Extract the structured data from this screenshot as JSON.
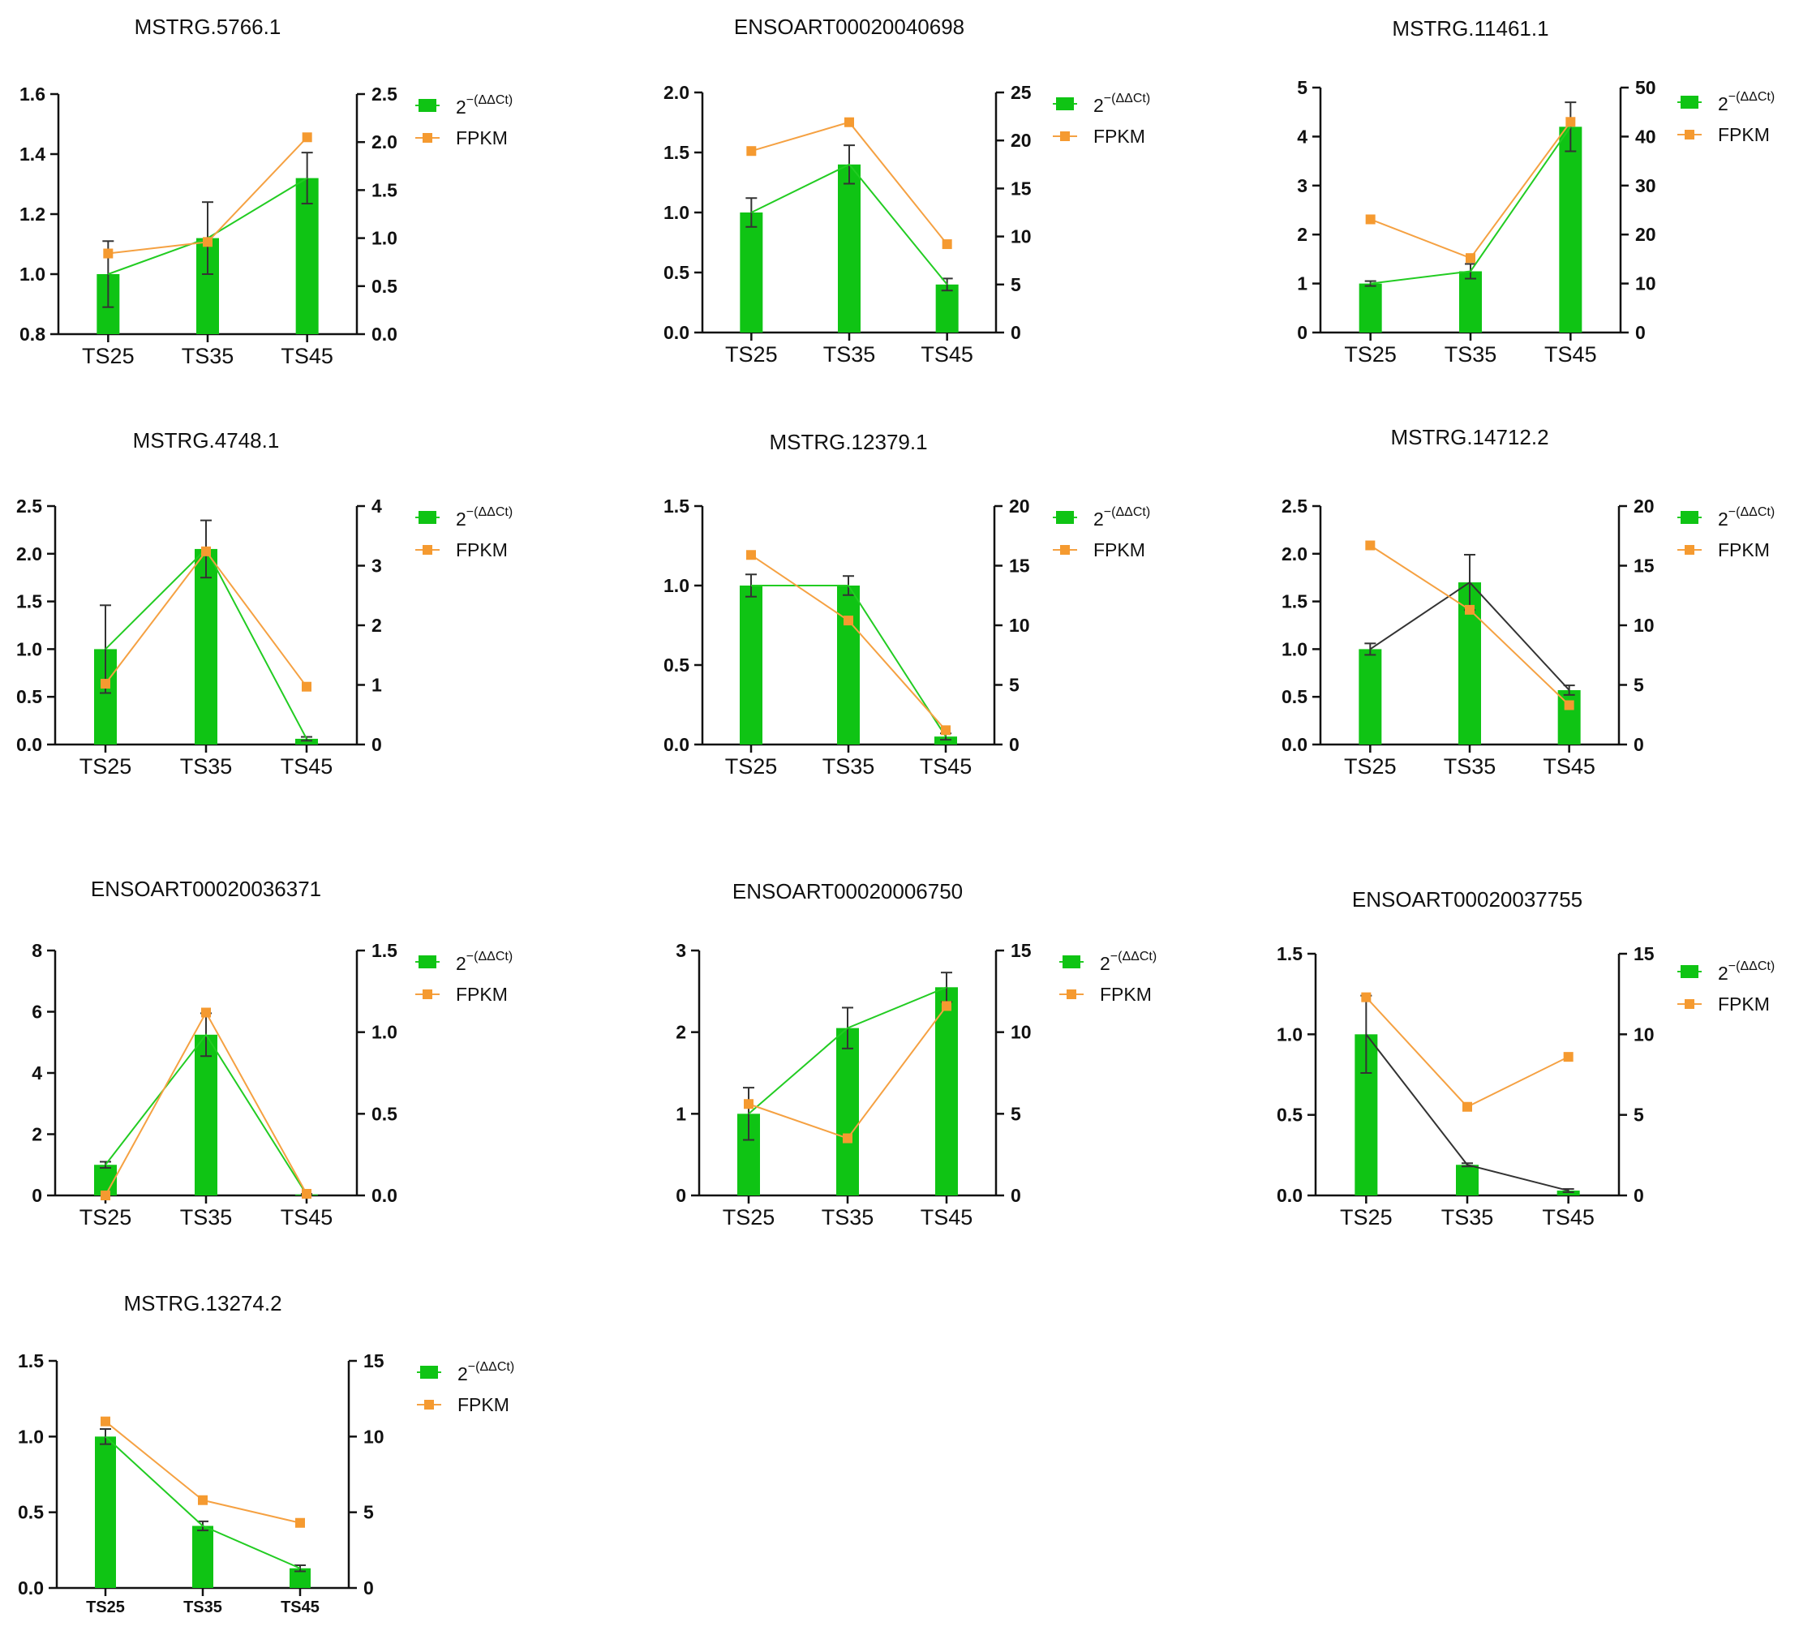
{
  "chart_data": [
    {
      "type": "bar",
      "title": "MSTRG.5766.1",
      "categories": [
        "TS25",
        "TS35",
        "TS45"
      ],
      "left_axis": {
        "min": 0.8,
        "max": 1.6,
        "ticks": [
          "0.8",
          "1.0",
          "1.2",
          "1.4",
          "1.6"
        ]
      },
      "right_axis": {
        "min": 0,
        "max": 2.5,
        "ticks": [
          "0.0",
          "0.5",
          "1.0",
          "1.5",
          "2.0",
          "2.5"
        ]
      },
      "series": [
        {
          "name": "2^-(ΔΔCt)",
          "kind": "bar+line",
          "axis": "left",
          "values": [
            1.0,
            1.12,
            1.32
          ],
          "errors": [
            0.11,
            0.12,
            0.085
          ],
          "line_color": "#22cc22"
        },
        {
          "name": "FPKM",
          "kind": "line",
          "axis": "right",
          "values": [
            0.84,
            0.96,
            2.05
          ],
          "line_color": "#f5a142"
        }
      ],
      "legend": {
        "qpcr_base": "2",
        "qpcr_exponent": "−(ΔΔCt)",
        "fpkm": "FPKM"
      }
    },
    {
      "type": "bar",
      "title": "ENSOART00020040698",
      "categories": [
        "TS25",
        "TS35",
        "TS45"
      ],
      "left_axis": {
        "min": 0,
        "max": 2.0,
        "ticks": [
          "0.0",
          "0.5",
          "1.0",
          "1.5",
          "2.0"
        ]
      },
      "right_axis": {
        "min": 0,
        "max": 25,
        "ticks": [
          "0",
          "5",
          "10",
          "15",
          "20",
          "25"
        ]
      },
      "series": [
        {
          "name": "2^-(ΔΔCt)",
          "kind": "bar+line",
          "axis": "left",
          "values": [
            1.0,
            1.4,
            0.4
          ],
          "errors": [
            0.12,
            0.16,
            0.05
          ],
          "line_color": "#22cc22"
        },
        {
          "name": "FPKM",
          "kind": "line",
          "axis": "right",
          "values": [
            18.9,
            21.9,
            9.2
          ],
          "line_color": "#f5a142"
        }
      ],
      "legend": {
        "qpcr_base": "2",
        "qpcr_exponent": "−(ΔΔCt)",
        "fpkm": "FPKM"
      }
    },
    {
      "type": "bar",
      "title": "MSTRG.11461.1",
      "categories": [
        "TS25",
        "TS35",
        "TS45"
      ],
      "left_axis": {
        "min": 0,
        "max": 5,
        "ticks": [
          "0",
          "1",
          "2",
          "3",
          "4",
          "5"
        ]
      },
      "right_axis": {
        "min": 0,
        "max": 50,
        "ticks": [
          "0",
          "10",
          "20",
          "30",
          "40",
          "50"
        ]
      },
      "series": [
        {
          "name": "2^-(ΔΔCt)",
          "kind": "bar+line",
          "axis": "left",
          "values": [
            1.0,
            1.25,
            4.2
          ],
          "errors": [
            0.05,
            0.15,
            0.5
          ],
          "line_color": "#22cc22"
        },
        {
          "name": "FPKM",
          "kind": "line",
          "axis": "right",
          "values": [
            23.1,
            15.2,
            43.0
          ],
          "line_color": "#f5a142"
        }
      ],
      "legend": {
        "qpcr_base": "2",
        "qpcr_exponent": "−(ΔΔCt)",
        "fpkm": "FPKM"
      }
    },
    {
      "type": "bar",
      "title": "MSTRG.4748.1",
      "categories": [
        "TS25",
        "TS35",
        "TS45"
      ],
      "left_axis": {
        "min": 0,
        "max": 2.5,
        "ticks": [
          "0.0",
          "0.5",
          "1.0",
          "1.5",
          "2.0",
          "2.5"
        ]
      },
      "right_axis": {
        "min": 0,
        "max": 4,
        "ticks": [
          "0",
          "1",
          "2",
          "3",
          "4"
        ]
      },
      "series": [
        {
          "name": "2^-(ΔΔCt)",
          "kind": "bar+line",
          "axis": "left",
          "values": [
            1.0,
            2.05,
            0.06
          ],
          "errors": [
            0.46,
            0.3,
            0.02
          ],
          "line_color": "#22cc22"
        },
        {
          "name": "FPKM",
          "kind": "line",
          "axis": "right",
          "values": [
            1.02,
            3.24,
            0.97
          ],
          "line_color": "#f5a142"
        }
      ],
      "legend": {
        "qpcr_base": "2",
        "qpcr_exponent": "−(ΔΔCt)",
        "fpkm": "FPKM"
      }
    },
    {
      "type": "bar",
      "title": "MSTRG.12379.1",
      "categories": [
        "TS25",
        "TS35",
        "TS45"
      ],
      "left_axis": {
        "min": 0,
        "max": 1.5,
        "ticks": [
          "0.0",
          "0.5",
          "1.0",
          "1.5"
        ]
      },
      "right_axis": {
        "min": 0,
        "max": 20,
        "ticks": [
          "0",
          "5",
          "10",
          "15",
          "20"
        ]
      },
      "series": [
        {
          "name": "2^-(ΔΔCt)",
          "kind": "bar+line",
          "axis": "left",
          "values": [
            1.0,
            1.0,
            0.05
          ],
          "errors": [
            0.07,
            0.06,
            0.02
          ],
          "line_color": "#22cc22"
        },
        {
          "name": "FPKM",
          "kind": "line",
          "axis": "right",
          "values": [
            15.9,
            10.4,
            1.2
          ],
          "line_color": "#f5a142"
        }
      ],
      "legend": {
        "qpcr_base": "2",
        "qpcr_exponent": "−(ΔΔCt)",
        "fpkm": "FPKM"
      }
    },
    {
      "type": "bar",
      "title": "MSTRG.14712.2",
      "categories": [
        "TS25",
        "TS35",
        "TS45"
      ],
      "left_axis": {
        "min": 0,
        "max": 2.5,
        "ticks": [
          "0.0",
          "0.5",
          "1.0",
          "1.5",
          "2.0",
          "2.5"
        ]
      },
      "right_axis": {
        "min": 0,
        "max": 20,
        "ticks": [
          "0",
          "5",
          "10",
          "15",
          "20"
        ]
      },
      "series": [
        {
          "name": "2^-(ΔΔCt)",
          "kind": "bar+line",
          "axis": "left",
          "values": [
            1.0,
            1.7,
            0.57
          ],
          "errors": [
            0.06,
            0.29,
            0.05
          ],
          "line_color": "#333333"
        },
        {
          "name": "FPKM",
          "kind": "line",
          "axis": "right",
          "values": [
            16.7,
            11.3,
            3.3
          ],
          "line_color": "#f5a142"
        }
      ],
      "legend": {
        "qpcr_base": "2",
        "qpcr_exponent": "−(ΔΔCt)",
        "fpkm": "FPKM"
      }
    },
    {
      "type": "bar",
      "title": "ENSOART00020036371",
      "categories": [
        "TS25",
        "TS35",
        "TS45"
      ],
      "left_axis": {
        "min": 0,
        "max": 8,
        "ticks": [
          "0",
          "2",
          "4",
          "6",
          "8"
        ]
      },
      "right_axis": {
        "min": 0,
        "max": 1.5,
        "ticks": [
          "0.0",
          "0.5",
          "1.0",
          "1.5"
        ]
      },
      "series": [
        {
          "name": "2^-(ΔΔCt)",
          "kind": "bar+line",
          "axis": "left",
          "values": [
            1.0,
            5.25,
            0.03
          ],
          "errors": [
            0.1,
            0.7,
            0.02
          ],
          "line_color": "#22cc22"
        },
        {
          "name": "FPKM",
          "kind": "line",
          "axis": "right",
          "values": [
            0.0,
            1.12,
            0.01
          ],
          "line_color": "#f5a142"
        }
      ],
      "legend": {
        "qpcr_base": "2",
        "qpcr_exponent": "−(ΔΔCt)",
        "fpkm": "FPKM"
      }
    },
    {
      "type": "bar",
      "title": "ENSOART00020006750",
      "categories": [
        "TS25",
        "TS35",
        "TS45"
      ],
      "left_axis": {
        "min": 0,
        "max": 3,
        "ticks": [
          "0",
          "1",
          "2",
          "3"
        ]
      },
      "right_axis": {
        "min": 0,
        "max": 15,
        "ticks": [
          "0",
          "5",
          "10",
          "15"
        ]
      },
      "series": [
        {
          "name": "2^-(ΔΔCt)",
          "kind": "bar+line",
          "axis": "left",
          "values": [
            1.0,
            2.05,
            2.55
          ],
          "errors": [
            0.32,
            0.25,
            0.18
          ],
          "line_color": "#22cc22"
        },
        {
          "name": "FPKM",
          "kind": "line",
          "axis": "right",
          "values": [
            5.6,
            3.5,
            11.6
          ],
          "line_color": "#f5a142"
        }
      ],
      "legend": {
        "qpcr_base": "2",
        "qpcr_exponent": "−(ΔΔCt)",
        "fpkm": "FPKM"
      }
    },
    {
      "type": "bar",
      "title": "ENSOART00020037755",
      "categories": [
        "TS25",
        "TS35",
        "TS45"
      ],
      "left_axis": {
        "min": 0,
        "max": 1.5,
        "ticks": [
          "0.0",
          "0.5",
          "1.0",
          "1.5"
        ]
      },
      "right_axis": {
        "min": 0,
        "max": 15,
        "ticks": [
          "0",
          "5",
          "10",
          "15"
        ]
      },
      "series": [
        {
          "name": "2^-(ΔΔCt)",
          "kind": "bar+line",
          "axis": "left",
          "values": [
            1.0,
            0.19,
            0.03
          ],
          "errors": [
            0.24,
            0.01,
            0.01
          ],
          "line_color": "#333333"
        },
        {
          "name": "FPKM",
          "kind": "line",
          "axis": "right",
          "values": [
            12.3,
            5.5,
            8.6
          ],
          "line_color": "#f5a142"
        }
      ],
      "legend": {
        "qpcr_base": "2",
        "qpcr_exponent": "−(ΔΔCt)",
        "fpkm": "FPKM"
      }
    },
    {
      "type": "bar",
      "title": "MSTRG.13274.2",
      "categories": [
        "TS25",
        "TS35",
        "TS45"
      ],
      "left_axis": {
        "min": 0,
        "max": 1.5,
        "ticks": [
          "0.0",
          "0.5",
          "1.0",
          "1.5"
        ]
      },
      "right_axis": {
        "min": 0,
        "max": 15,
        "ticks": [
          "0",
          "5",
          "10",
          "15"
        ]
      },
      "series": [
        {
          "name": "2^-(ΔΔCt)",
          "kind": "bar+line",
          "axis": "left",
          "values": [
            1.0,
            0.41,
            0.13
          ],
          "errors": [
            0.05,
            0.03,
            0.02
          ],
          "line_color": "#22cc22"
        },
        {
          "name": "FPKM",
          "kind": "line",
          "axis": "right",
          "values": [
            11.0,
            5.8,
            4.3
          ],
          "line_color": "#f5a142"
        }
      ],
      "legend": {
        "qpcr_base": "2",
        "qpcr_exponent": "−(ΔΔCt)",
        "fpkm": "FPKM"
      }
    }
  ],
  "colors": {
    "bar": "#0fc414",
    "axis": "#111111",
    "error": "#333333",
    "fpkm_marker": "#f59a30"
  }
}
